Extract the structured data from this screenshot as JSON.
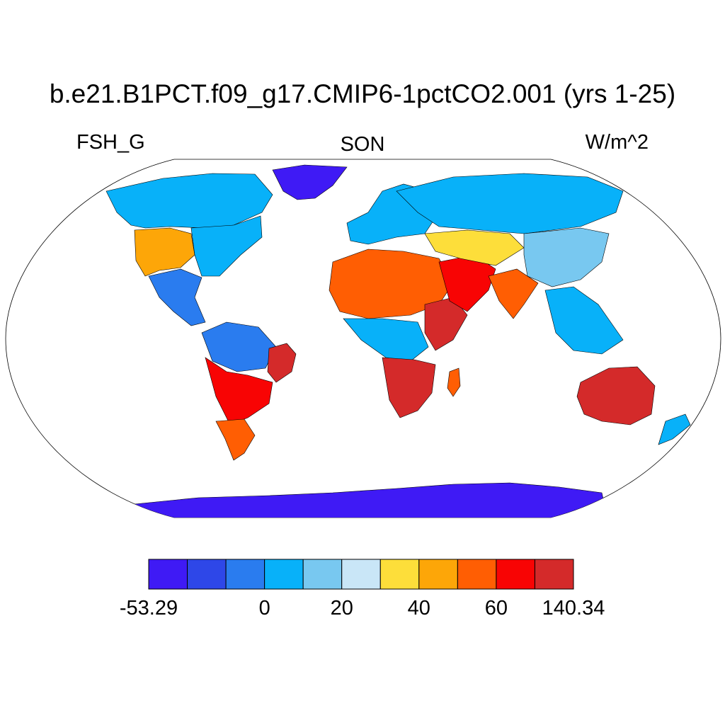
{
  "title": "b.e21.B1PCT.f09_g17.CMIP6-1pctCO2.001 (yrs 1-25)",
  "variable": "FSH_G",
  "season": "SON",
  "units": "W/m^2",
  "colorbar": {
    "colors": [
      "#3f1af5",
      "#2e47e8",
      "#2a7cef",
      "#08b1f9",
      "#78c8f0",
      "#c9e6f7",
      "#fdde3a",
      "#fda608",
      "#ff5e03",
      "#f80404",
      "#d42a2a"
    ],
    "labels": [
      {
        "text": "-53.29",
        "boundary": 0
      },
      {
        "text": "0",
        "boundary": 3
      },
      {
        "text": "20",
        "boundary": 5
      },
      {
        "text": "40",
        "boundary": 7
      },
      {
        "text": "60",
        "boundary": 9
      },
      {
        "text": "140.34",
        "boundary": 11
      }
    ]
  },
  "regions": [
    {
      "name": "antarctica",
      "color_index": 0
    },
    {
      "name": "greenland",
      "color_index": 0
    },
    {
      "name": "north-america-north",
      "color_index": 3
    },
    {
      "name": "north-america-southwest",
      "color_index": 7
    },
    {
      "name": "north-america-east",
      "color_index": 3
    },
    {
      "name": "central-america",
      "color_index": 2
    },
    {
      "name": "south-america-amazon",
      "color_index": 2
    },
    {
      "name": "brazil-east",
      "color_index": 10
    },
    {
      "name": "south-america-andes",
      "color_index": 9
    },
    {
      "name": "patagonia",
      "color_index": 8
    },
    {
      "name": "europe",
      "color_index": 3
    },
    {
      "name": "sahara",
      "color_index": 8
    },
    {
      "name": "horn-of-africa",
      "color_index": 10
    },
    {
      "name": "central-africa",
      "color_index": 3
    },
    {
      "name": "southern-africa",
      "color_index": 10
    },
    {
      "name": "madagascar",
      "color_index": 8
    },
    {
      "name": "middle-east",
      "color_index": 9
    },
    {
      "name": "central-asia",
      "color_index": 6
    },
    {
      "name": "siberia",
      "color_index": 3
    },
    {
      "name": "east-asia",
      "color_index": 4
    },
    {
      "name": "india",
      "color_index": 8
    },
    {
      "name": "southeast-asia",
      "color_index": 3
    },
    {
      "name": "australia",
      "color_index": 10
    },
    {
      "name": "new-zealand",
      "color_index": 3
    }
  ]
}
